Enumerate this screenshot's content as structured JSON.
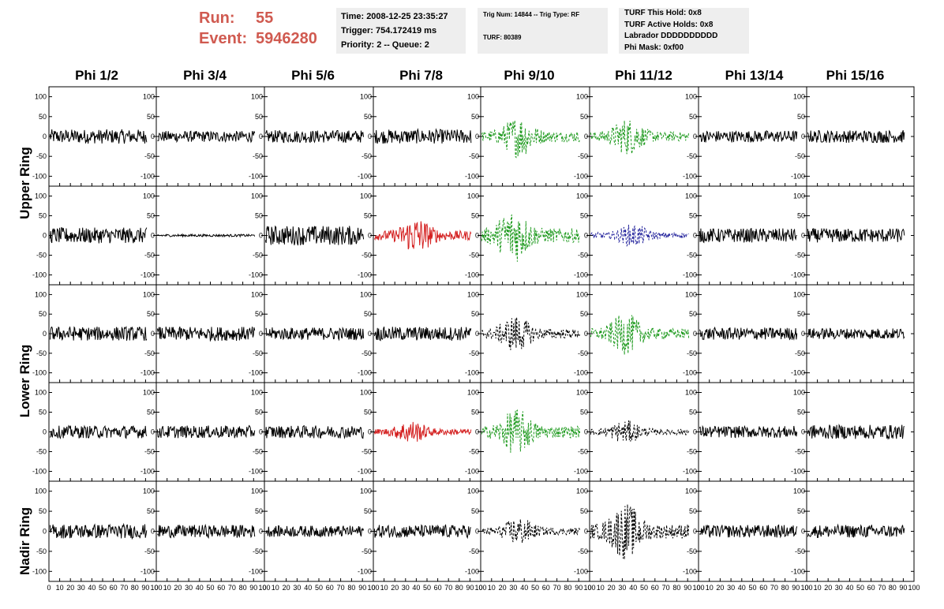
{
  "run": {
    "run_label": "Run:",
    "run_value": "55",
    "event_label": "Event:",
    "event_value": "5946280"
  },
  "info_time": {
    "line1": "Time: 2008-12-25 23:35:27",
    "line2": "Trigger: 754.172419 ms",
    "line3": "Priority: 2 -- Queue: 2"
  },
  "info_trig": {
    "line1": "Trig Num: 14844 -- Trig Type: RF",
    "line2": "TURF: 80389"
  },
  "info_turf": {
    "line1": "TURF This Hold: 0x8",
    "line2": "TURF Active Holds: 0x8",
    "line3": "Labrador DDDDDDDDDD",
    "line4": "Phi Mask: 0xf00"
  },
  "columns": [
    "Phi 1/2",
    "Phi 3/4",
    "Phi 5/6",
    "Phi 7/8",
    "Phi 9/10",
    "Phi 11/12",
    "Phi 13/14",
    "Phi 15/16"
  ],
  "row_groups": [
    "Upper Ring",
    "Lower Ring",
    "Nadir Ring"
  ],
  "colors": {
    "black": "#000000",
    "red": "#d42020",
    "green": "#1e9a1e",
    "blue": "#1e1e9a"
  },
  "chart_data": {
    "type": "line",
    "description_rows": 5,
    "description_cols": 8,
    "xlim": [
      0,
      100
    ],
    "ylim": [
      -125,
      125
    ],
    "x_ticks": [
      0,
      10,
      20,
      30,
      40,
      50,
      60,
      70,
      80,
      90,
      100
    ],
    "x_tick_labels": [
      "0",
      "10",
      "20",
      "30",
      "40",
      "50",
      "60",
      "70",
      "80",
      "90",
      "100"
    ],
    "y_ticks": [
      100,
      50,
      0,
      -50,
      -100
    ],
    "y_tick_labels": [
      "100",
      "50",
      "0",
      "-50",
      "-100"
    ],
    "panels": [
      [
        {
          "c": "black",
          "a": 18
        },
        {
          "c": "black",
          "a": 14
        },
        {
          "c": "black",
          "a": 16
        },
        {
          "c": "black",
          "a": 18
        },
        {
          "c": "green",
          "a": 45,
          "dash": true,
          "pk": 35
        },
        {
          "c": "green",
          "a": 40,
          "dash": true,
          "pk": 35
        },
        {
          "c": "black",
          "a": 15
        },
        {
          "c": "black",
          "a": 16
        }
      ],
      [
        {
          "c": "black",
          "a": 20
        },
        {
          "c": "black",
          "a": 3
        },
        {
          "c": "black",
          "a": 25
        },
        {
          "c": "red",
          "a": 40,
          "pk": 40
        },
        {
          "c": "green",
          "a": 60,
          "dash": true,
          "pk": 30
        },
        {
          "c": "blue",
          "a": 25,
          "dash": true,
          "pk": 40
        },
        {
          "c": "black",
          "a": 18
        },
        {
          "c": "black",
          "a": 18
        }
      ],
      [
        {
          "c": "black",
          "a": 18
        },
        {
          "c": "black",
          "a": 18
        },
        {
          "c": "black",
          "a": 16
        },
        {
          "c": "black",
          "a": 18
        },
        {
          "c": "black",
          "a": 40,
          "dash": true,
          "pk": 32
        },
        {
          "c": "green",
          "a": 45,
          "dash": true,
          "pk": 33
        },
        {
          "c": "black",
          "a": 16
        },
        {
          "c": "black",
          "a": 14
        }
      ],
      [
        {
          "c": "black",
          "a": 16
        },
        {
          "c": "black",
          "a": 16
        },
        {
          "c": "black",
          "a": 16
        },
        {
          "c": "red",
          "a": 25,
          "pk": 35
        },
        {
          "c": "green",
          "a": 50,
          "dash": true,
          "pk": 33
        },
        {
          "c": "black",
          "a": 25,
          "dash": true,
          "pk": 33
        },
        {
          "c": "black",
          "a": 15
        },
        {
          "c": "black",
          "a": 18
        }
      ],
      [
        {
          "c": "black",
          "a": 18
        },
        {
          "c": "black",
          "a": 16
        },
        {
          "c": "black",
          "a": 14
        },
        {
          "c": "black",
          "a": 16
        },
        {
          "c": "black",
          "a": 30,
          "dash": true,
          "pk": 35
        },
        {
          "c": "black",
          "a": 60,
          "dash": true,
          "pk": 33
        },
        {
          "c": "black",
          "a": 16
        },
        {
          "c": "black",
          "a": 16
        }
      ]
    ]
  }
}
